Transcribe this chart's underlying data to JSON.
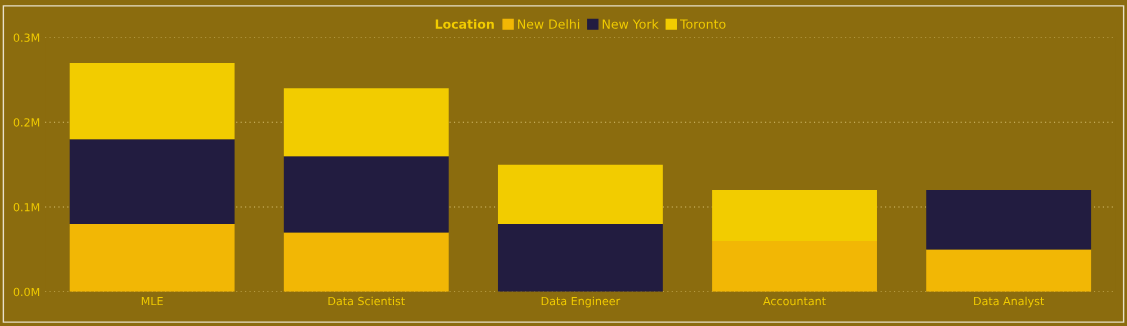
{
  "chart_data": {
    "type": "bar",
    "stacked": true,
    "legend_title": "Location",
    "legend": "top",
    "categories": [
      "MLE",
      "Data Scientist",
      "Data Engineer",
      "Accountant",
      "Data Analyst"
    ],
    "series": [
      {
        "name": "New Delhi",
        "color": "#f2b705",
        "values": [
          0.08,
          0.07,
          null,
          0.06,
          0.05
        ]
      },
      {
        "name": "New York",
        "color": "#221c40",
        "values": [
          0.1,
          0.09,
          0.08,
          null,
          0.07
        ]
      },
      {
        "name": "Toronto",
        "color": "#f2cc00",
        "values": [
          0.09,
          0.08,
          0.07,
          0.06,
          null
        ]
      }
    ],
    "ylim": [
      0,
      0.3
    ],
    "yticks": [
      {
        "value": 0,
        "label": "0.0M"
      },
      {
        "value": 0.1,
        "label": "0.1M"
      },
      {
        "value": 0.2,
        "label": "0.2M"
      },
      {
        "value": 0.3,
        "label": "0.3M"
      }
    ],
    "grid": "y"
  }
}
